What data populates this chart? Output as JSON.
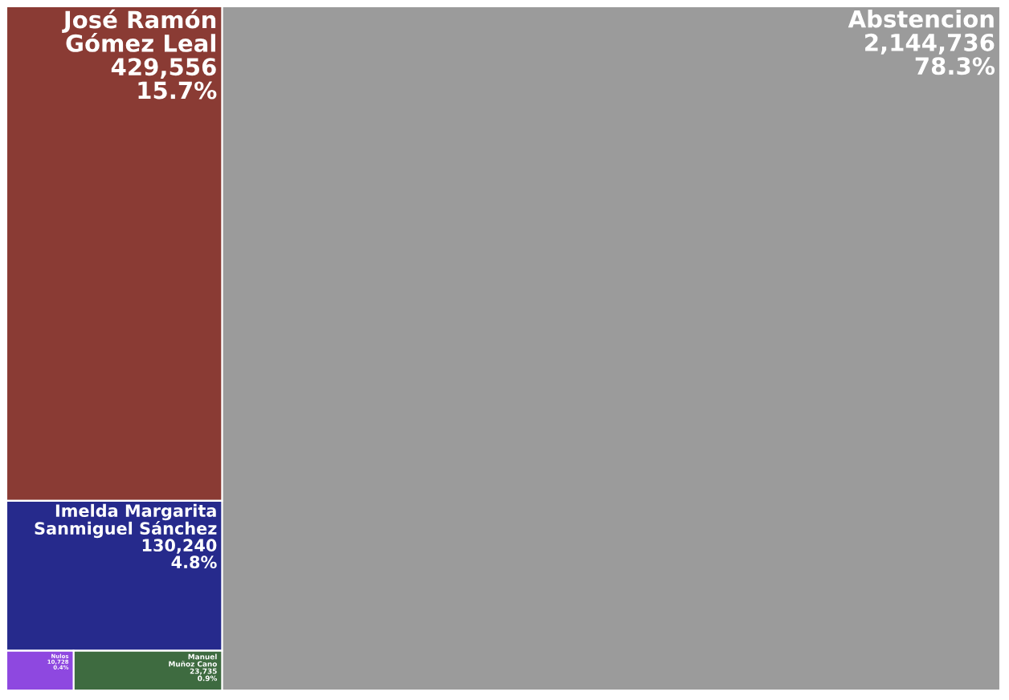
{
  "chart_data": {
    "type": "other",
    "categories": [
      "Abstencion",
      "José Ramón Gómez Leal",
      "Imelda Margarita Sanmiguel Sánchez",
      "Manuel Muñoz Cano",
      "Nulos"
    ],
    "values": [
      2144736,
      429556,
      130240,
      23735,
      10728
    ],
    "value_labels": [
      "2,144,736\n78.3%",
      "429,556\n15.7%",
      "130,240\n4.8%",
      "23,735\n0.9%",
      "10,728\n0.4%"
    ],
    "colors": [
      "#9b9b9b",
      "#8a3b34",
      "#262a8c",
      "#3e6b40",
      "#8e48e0"
    ]
  }
}
